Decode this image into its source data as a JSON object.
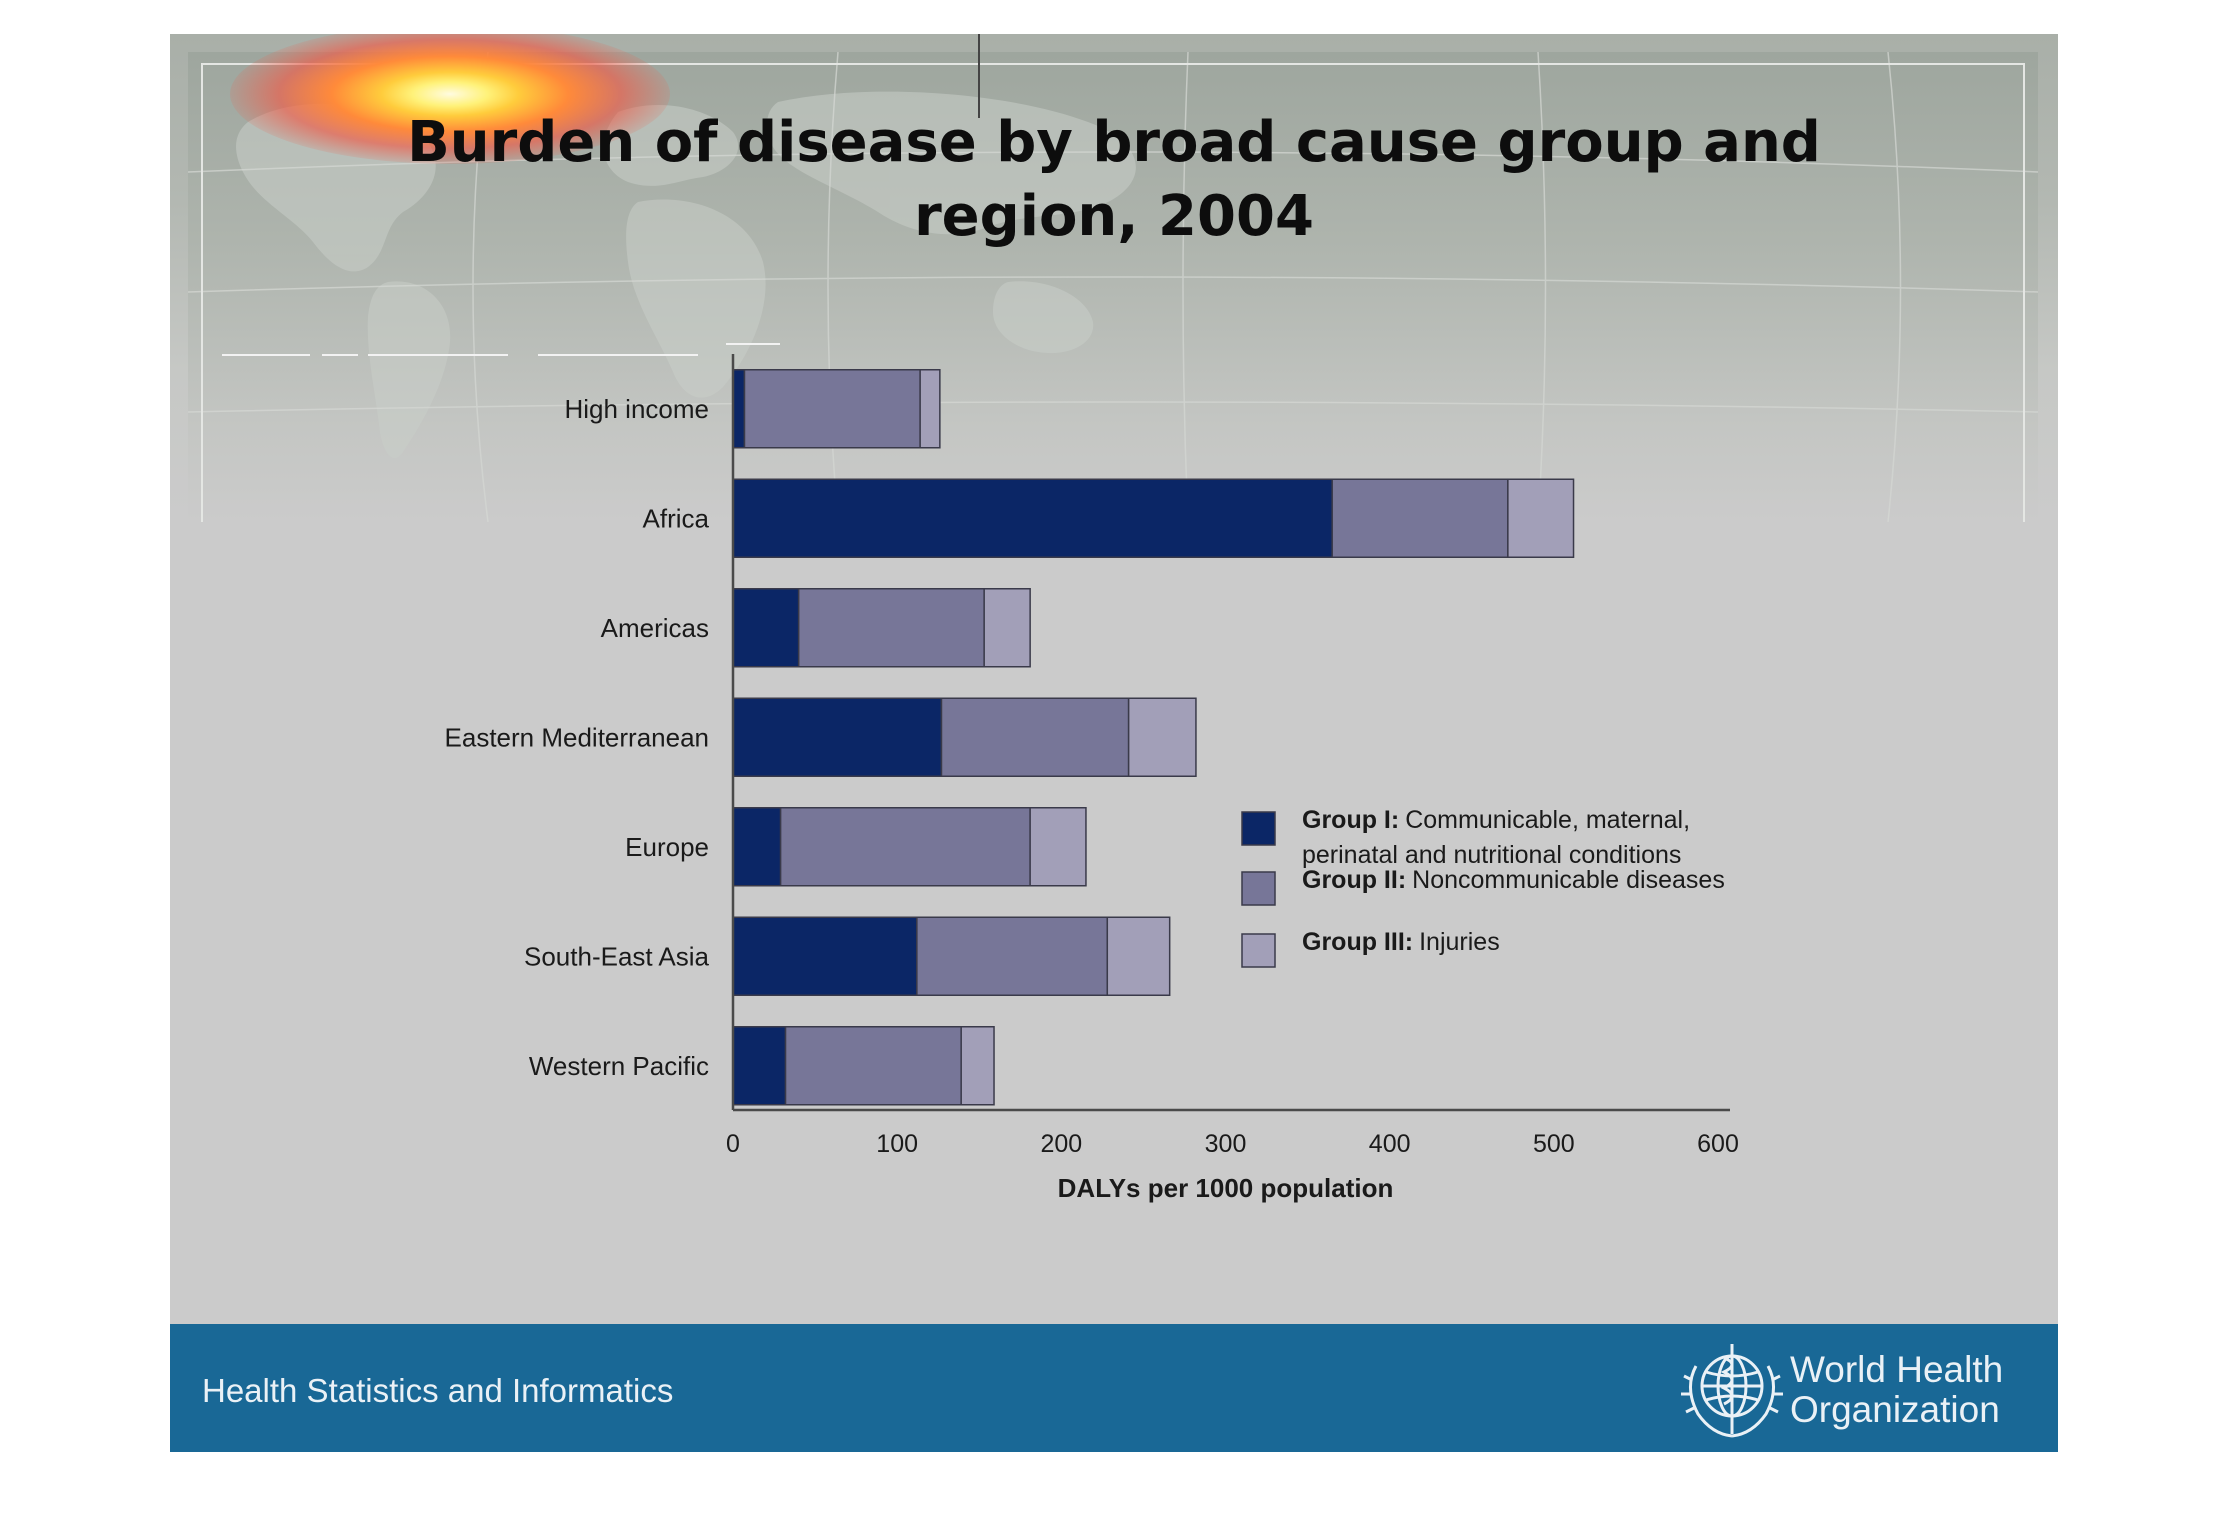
{
  "title_lines": [
    "Burden of disease by broad cause group and",
    "region, 2004"
  ],
  "footer": {
    "left_text": "Health Statistics and Informatics",
    "org_name_lines": [
      "World Health",
      "Organization"
    ]
  },
  "icons": [
    "world-map-icon",
    "who-emblem-icon"
  ],
  "colors": {
    "slide_background": "#cbcbcb",
    "footer_band": "#196896",
    "group_1": "#0b2666",
    "group_2": "#777698",
    "group_3": "#a29fb8"
  },
  "chart_data": {
    "type": "bar",
    "orientation": "horizontal",
    "stacked": true,
    "categories": [
      "High income",
      "Africa",
      "Americas",
      "Eastern Mediterranean",
      "Europe",
      "South-East Asia",
      "Western Pacific"
    ],
    "series": [
      {
        "name": "Group I:",
        "description_lines": [
          "Communicable, maternal,",
          "perinatal and nutritional conditions"
        ],
        "color": "#0b2666",
        "values": [
          7,
          365,
          40,
          127,
          29,
          112,
          32
        ]
      },
      {
        "name": "Group II:",
        "description_lines": [
          "Noncommunicable diseases"
        ],
        "color": "#777698",
        "values": [
          107,
          107,
          113,
          114,
          152,
          116,
          107
        ]
      },
      {
        "name": "Group III:",
        "description_lines": [
          "Injuries"
        ],
        "color": "#a29fb8",
        "values": [
          12,
          40,
          28,
          41,
          34,
          38,
          20
        ]
      }
    ],
    "xlabel": "DALYs per 1000 population",
    "xlim": [
      0,
      600
    ],
    "xticks": [
      0,
      100,
      200,
      300,
      400,
      500,
      600
    ],
    "grid": false,
    "legend_position": "right"
  }
}
